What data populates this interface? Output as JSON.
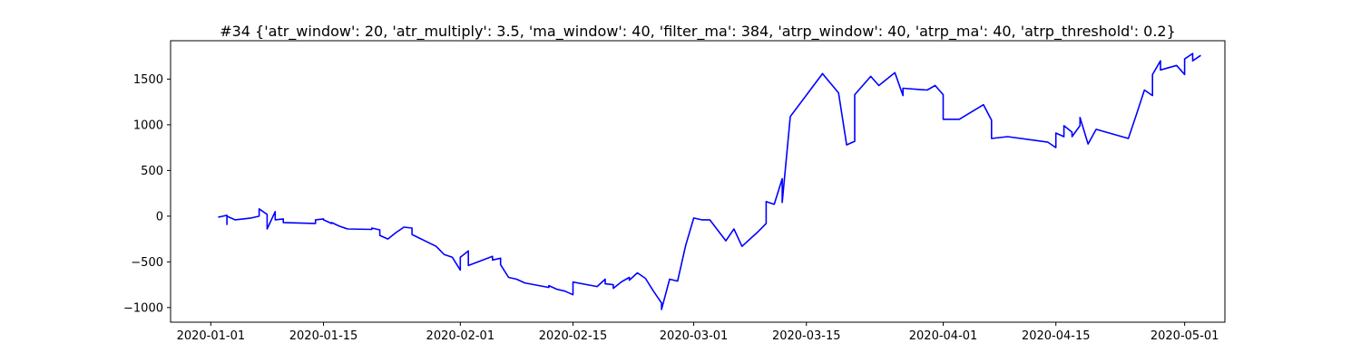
{
  "chart_data": {
    "type": "line",
    "title": "#34 {'atr_window': 20, 'atr_multiply': 3.5, 'ma_window': 40, 'filter_ma': 384, 'atrp_window': 40, 'atrp_ma': 40, 'atrp_threshold': 0.2}",
    "xlabel": "",
    "ylabel": "",
    "x_is_date": true,
    "xlim": [
      "2020-12-27",
      "2020-05-06"
    ],
    "ylim": [
      -1160,
      1920
    ],
    "x_ticks": [
      "2020-01-01",
      "2020-01-15",
      "2020-02-01",
      "2020-02-15",
      "2020-03-01",
      "2020-03-15",
      "2020-04-01",
      "2020-04-15",
      "2020-05-01"
    ],
    "y_ticks": [
      -1000,
      -500,
      0,
      500,
      1000,
      1500
    ],
    "grid": false,
    "legend": "none",
    "series": [
      {
        "color": "#0000ff",
        "points": [
          [
            "2020-01-02",
            0
          ],
          [
            "2020-01-02",
            -10
          ],
          [
            "2020-01-03",
            10
          ],
          [
            "2020-01-03",
            -40
          ],
          [
            "2020-01-03",
            -60
          ],
          [
            "2020-01-03",
            -90
          ],
          [
            "2020-01-03",
            0
          ],
          [
            "2020-01-04",
            -40
          ],
          [
            "2020-01-06",
            -20
          ],
          [
            "2020-01-07",
            0
          ],
          [
            "2020-01-07",
            80
          ],
          [
            "2020-01-08",
            20
          ],
          [
            "2020-01-08",
            -80
          ],
          [
            "2020-01-08",
            -140
          ],
          [
            "2020-01-09",
            50
          ],
          [
            "2020-01-09",
            -40
          ],
          [
            "2020-01-10",
            -30
          ],
          [
            "2020-01-10",
            -70
          ],
          [
            "2020-01-14",
            -80
          ],
          [
            "2020-01-14",
            -40
          ],
          [
            "2020-01-15",
            -30
          ],
          [
            "2020-01-15",
            -40
          ],
          [
            "2020-01-16",
            -80
          ],
          [
            "2020-01-16",
            -70
          ],
          [
            "2020-01-17",
            -110
          ],
          [
            "2020-01-18",
            -140
          ],
          [
            "2020-01-21",
            -145
          ],
          [
            "2020-01-21",
            -130
          ],
          [
            "2020-01-22",
            -150
          ],
          [
            "2020-01-22",
            -210
          ],
          [
            "2020-01-23",
            -250
          ],
          [
            "2020-01-24",
            -180
          ],
          [
            "2020-01-25",
            -120
          ],
          [
            "2020-01-26",
            -130
          ],
          [
            "2020-01-26",
            -200
          ],
          [
            "2020-01-29",
            -330
          ],
          [
            "2020-01-30",
            -420
          ],
          [
            "2020-01-31",
            -450
          ],
          [
            "2020-02-01",
            -590
          ],
          [
            "2020-02-01",
            -450
          ],
          [
            "2020-02-02",
            -380
          ],
          [
            "2020-02-02",
            -540
          ],
          [
            "2020-02-05",
            -440
          ],
          [
            "2020-02-05",
            -480
          ],
          [
            "2020-02-06",
            -460
          ],
          [
            "2020-02-06",
            -530
          ],
          [
            "2020-02-07",
            -670
          ],
          [
            "2020-02-08",
            -690
          ],
          [
            "2020-02-09",
            -730
          ],
          [
            "2020-02-12",
            -780
          ],
          [
            "2020-02-12",
            -760
          ],
          [
            "2020-02-13",
            -800
          ],
          [
            "2020-02-14",
            -820
          ],
          [
            "2020-02-15",
            -860
          ],
          [
            "2020-02-15",
            -720
          ],
          [
            "2020-02-18",
            -770
          ],
          [
            "2020-02-19",
            -690
          ],
          [
            "2020-02-19",
            -740
          ],
          [
            "2020-02-20",
            -750
          ],
          [
            "2020-02-20",
            -790
          ],
          [
            "2020-02-21",
            -720
          ],
          [
            "2020-02-22",
            -670
          ],
          [
            "2020-02-22",
            -700
          ],
          [
            "2020-02-23",
            -620
          ],
          [
            "2020-02-24",
            -680
          ],
          [
            "2020-02-25",
            -820
          ],
          [
            "2020-02-26",
            -950
          ],
          [
            "2020-02-26",
            -1020
          ],
          [
            "2020-02-27",
            -690
          ],
          [
            "2020-02-28",
            -710
          ],
          [
            "2020-02-29",
            -320
          ],
          [
            "2020-03-01",
            -20
          ],
          [
            "2020-03-02",
            -40
          ],
          [
            "2020-03-03",
            -40
          ],
          [
            "2020-03-05",
            -270
          ],
          [
            "2020-03-06",
            -140
          ],
          [
            "2020-03-07",
            -330
          ],
          [
            "2020-03-09",
            -170
          ],
          [
            "2020-03-10",
            -80
          ],
          [
            "2020-03-10",
            160
          ],
          [
            "2020-03-11",
            130
          ],
          [
            "2020-03-12",
            410
          ],
          [
            "2020-03-12",
            150
          ],
          [
            "2020-03-13",
            1090
          ],
          [
            "2020-03-17",
            1560
          ],
          [
            "2020-03-19",
            1350
          ],
          [
            "2020-03-20",
            780
          ],
          [
            "2020-03-21",
            820
          ],
          [
            "2020-03-21",
            1330
          ],
          [
            "2020-03-23",
            1530
          ],
          [
            "2020-03-24",
            1430
          ],
          [
            "2020-03-26",
            1570
          ],
          [
            "2020-03-27",
            1320
          ],
          [
            "2020-03-27",
            1400
          ],
          [
            "2020-03-30",
            1380
          ],
          [
            "2020-03-31",
            1430
          ],
          [
            "2020-04-01",
            1330
          ],
          [
            "2020-04-01",
            1150
          ],
          [
            "2020-04-01",
            1060
          ],
          [
            "2020-04-03",
            1060
          ],
          [
            "2020-04-06",
            1220
          ],
          [
            "2020-04-07",
            1050
          ],
          [
            "2020-04-07",
            1000
          ],
          [
            "2020-04-07",
            850
          ],
          [
            "2020-04-09",
            870
          ],
          [
            "2020-04-14",
            810
          ],
          [
            "2020-04-15",
            750
          ],
          [
            "2020-04-15",
            910
          ],
          [
            "2020-04-16",
            870
          ],
          [
            "2020-04-16",
            990
          ],
          [
            "2020-04-17",
            920
          ],
          [
            "2020-04-17",
            870
          ],
          [
            "2020-04-18",
            990
          ],
          [
            "2020-04-18",
            1080
          ],
          [
            "2020-04-19",
            790
          ],
          [
            "2020-04-20",
            950
          ],
          [
            "2020-04-24",
            850
          ],
          [
            "2020-04-25",
            1110
          ],
          [
            "2020-04-26",
            1380
          ],
          [
            "2020-04-27",
            1320
          ],
          [
            "2020-04-27",
            1550
          ],
          [
            "2020-04-28",
            1700
          ],
          [
            "2020-04-28",
            1600
          ],
          [
            "2020-04-30",
            1650
          ],
          [
            "2020-05-01",
            1550
          ],
          [
            "2020-05-01",
            1720
          ],
          [
            "2020-05-02",
            1780
          ],
          [
            "2020-05-02",
            1700
          ],
          [
            "2020-05-03",
            1760
          ]
        ]
      }
    ]
  }
}
